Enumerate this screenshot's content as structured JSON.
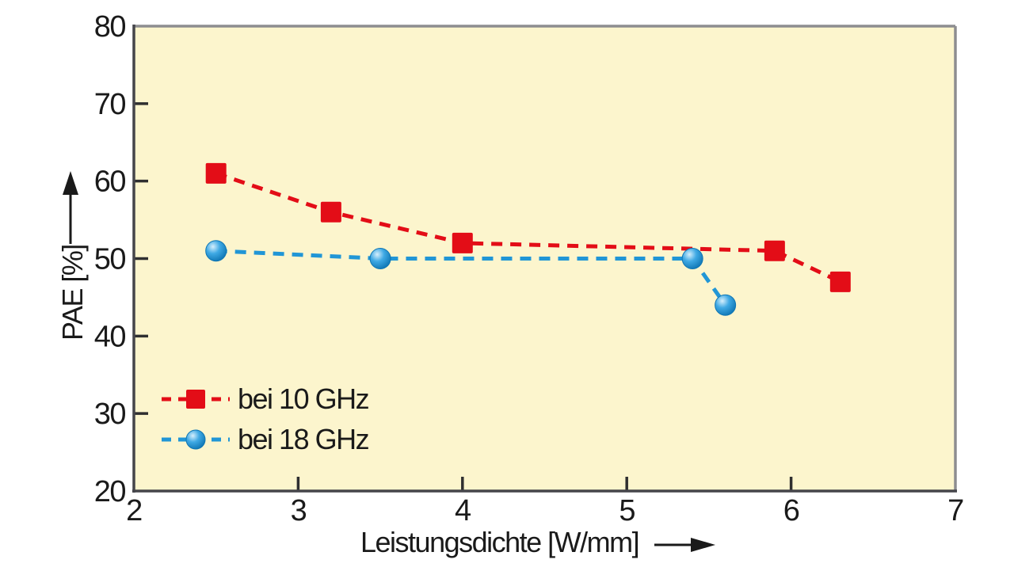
{
  "chart_data": {
    "type": "line",
    "xlabel": "Leistungsdichte [W/mm]",
    "ylabel": "PAE [%]",
    "xlim": [
      2,
      7
    ],
    "ylim": [
      20,
      80
    ],
    "xticks": [
      2,
      3,
      4,
      5,
      6,
      7
    ],
    "yticks": [
      20,
      30,
      40,
      50,
      60,
      70,
      80
    ],
    "grid": false,
    "legend_position": "inside-bottom-left",
    "line_style": "dashed",
    "colors": {
      "plot_bg": "#FCF5CD",
      "frame_dark": "#45454a",
      "frame_light": "#8d8d90",
      "tick": "#2f2f30",
      "text": "#1a1a1a",
      "red": "#E30D17",
      "blue_main": "#2196D6",
      "blue_dark": "#0F76B4",
      "blue_light": "#D6EFFC"
    },
    "series": [
      {
        "name": "bei 10 GHz",
        "marker": "square",
        "color": "#E30D17",
        "points": [
          [
            2.5,
            61
          ],
          [
            3.2,
            56
          ],
          [
            4.0,
            52
          ],
          [
            5.9,
            51
          ],
          [
            6.3,
            47
          ]
        ]
      },
      {
        "name": "bei 18 GHz",
        "marker": "circle",
        "color": "#2196D6",
        "points": [
          [
            2.5,
            51
          ],
          [
            3.5,
            50
          ],
          [
            5.4,
            50
          ],
          [
            5.6,
            44
          ]
        ]
      }
    ]
  }
}
